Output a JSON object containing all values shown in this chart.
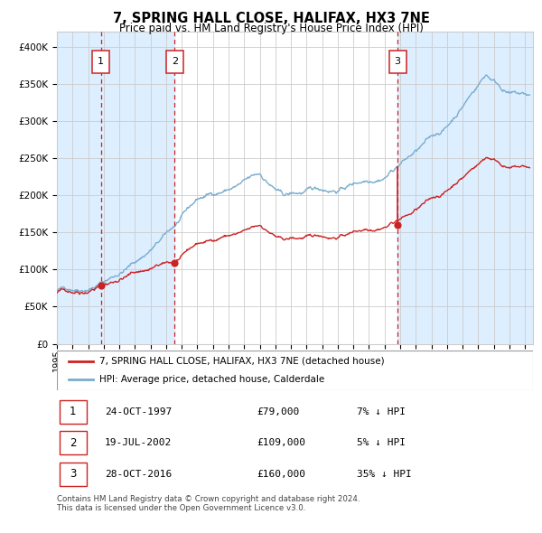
{
  "title": "7, SPRING HALL CLOSE, HALIFAX, HX3 7NE",
  "subtitle": "Price paid vs. HM Land Registry's House Price Index (HPI)",
  "ylim": [
    0,
    420000
  ],
  "yticks": [
    0,
    50000,
    100000,
    150000,
    200000,
    250000,
    300000,
    350000,
    400000
  ],
  "xlim_start": 1995.0,
  "xlim_end": 2025.5,
  "transactions": [
    {
      "label": "1",
      "date_num": 1997.82,
      "price": 79000
    },
    {
      "label": "2",
      "date_num": 2002.55,
      "price": 109000
    },
    {
      "label": "3",
      "date_num": 2016.83,
      "price": 160000
    }
  ],
  "red_color": "#cc2222",
  "blue_color": "#7aadcf",
  "shade_color": "#ddeeff",
  "grid_color": "#cccccc",
  "background_color": "#ffffff",
  "legend_entries": [
    "7, SPRING HALL CLOSE, HALIFAX, HX3 7NE (detached house)",
    "HPI: Average price, detached house, Calderdale"
  ],
  "table_rows": [
    {
      "num": "1",
      "date": "24-OCT-1997",
      "price": "£79,000",
      "hpi": "7% ↓ HPI"
    },
    {
      "num": "2",
      "date": "19-JUL-2002",
      "price": "£109,000",
      "hpi": "5% ↓ HPI"
    },
    {
      "num": "3",
      "date": "28-OCT-2016",
      "price": "£160,000",
      "hpi": "35% ↓ HPI"
    }
  ],
  "footnote": "Contains HM Land Registry data © Crown copyright and database right 2024.\nThis data is licensed under the Open Government Licence v3.0."
}
